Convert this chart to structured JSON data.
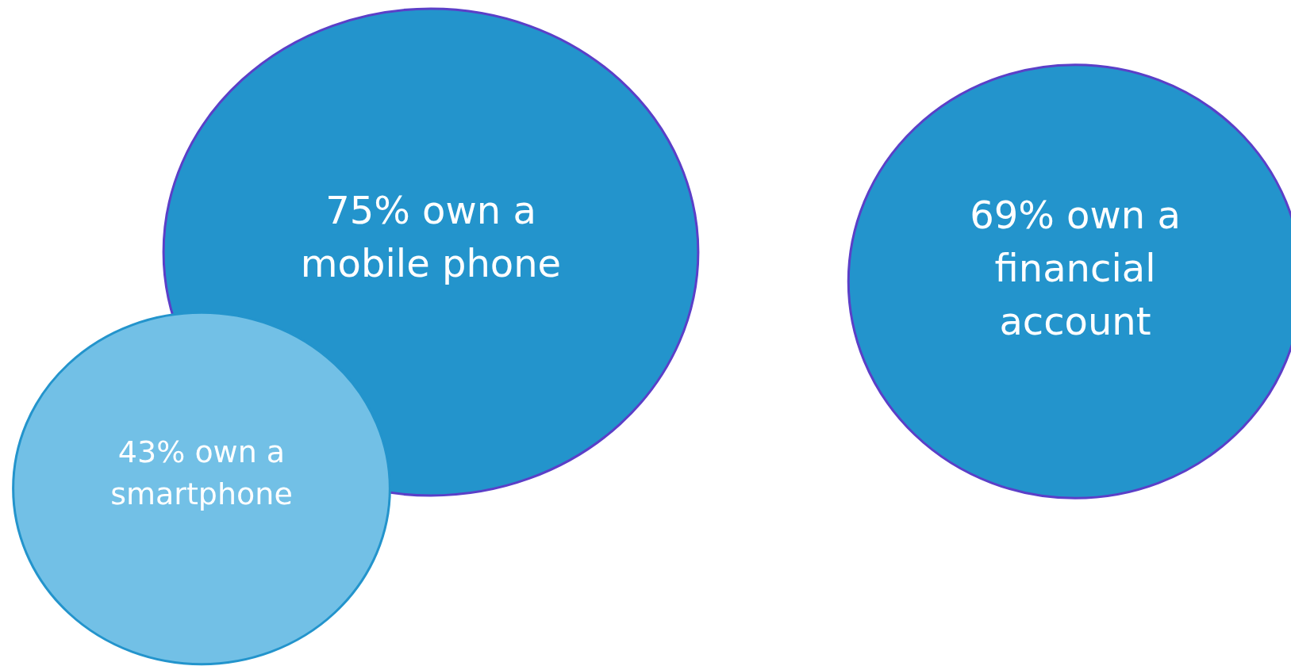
{
  "chart_data": {
    "type": "other",
    "categories": [
      "own a mobile phone",
      "own a smartphone",
      "own a financial account"
    ],
    "values": [
      75,
      43,
      69
    ],
    "value_labels": [
      "75%",
      "43%",
      "69%"
    ],
    "colors": [
      "#2394cc",
      "#72c0e6",
      "#2394cc"
    ]
  }
}
